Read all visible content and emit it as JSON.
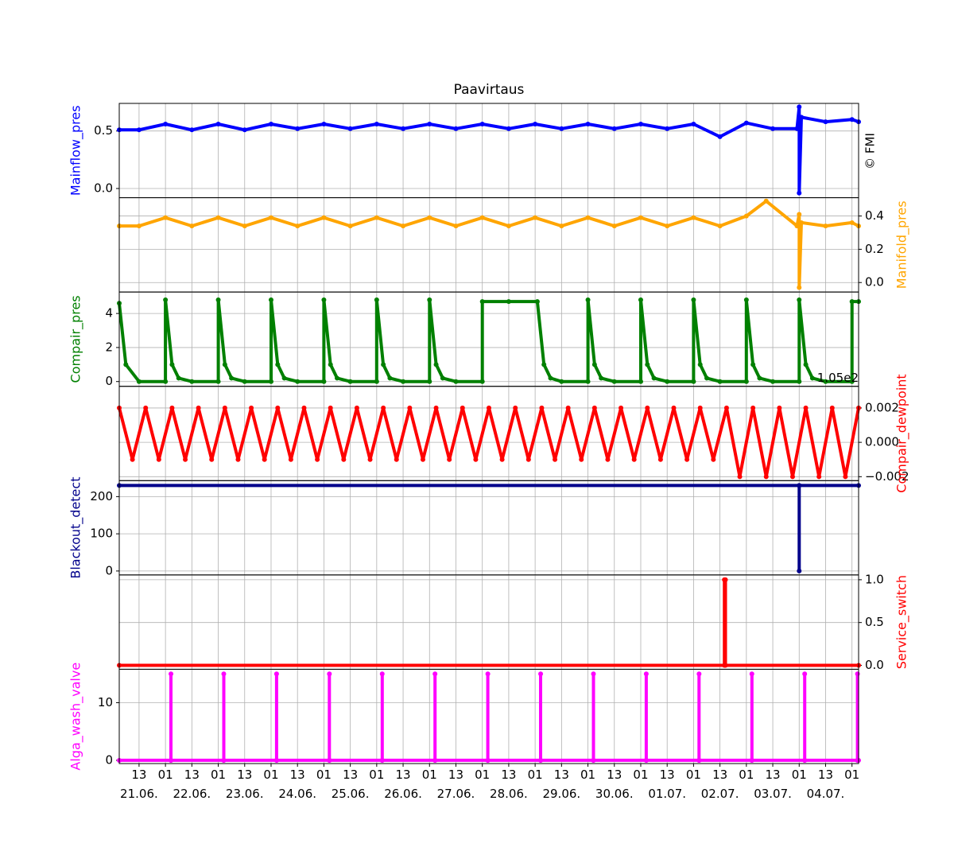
{
  "chart_data": [
    {
      "type": "line",
      "title": "Paavirtaus",
      "watermark": "© FMI",
      "ylabel": "Mainflow_pres",
      "yaxis_side": "left",
      "color": "#0000ff",
      "grid": true,
      "ylim": [
        -0.08,
        0.74
      ],
      "yticks": [
        {
          "value": 0,
          "label": "0.0"
        },
        0.5
      ],
      "x": [
        "21.06. 04:00",
        "21.06. 13:00",
        "22.06. 01:00",
        "22.06. 13:00",
        "23.06. 01:00",
        "23.06. 13:00",
        "24.06. 01:00",
        "24.06. 13:00",
        "25.06. 01:00",
        "25.06. 13:00",
        "26.06. 01:00",
        "26.06. 13:00",
        "27.06. 01:00",
        "27.06. 13:00",
        "28.06. 01:00",
        "28.06. 13:00",
        "29.06. 01:00",
        "29.06. 13:00",
        "30.06. 01:00",
        "30.06. 13:00",
        "01.07. 01:00",
        "01.07. 13:00",
        "02.07. 01:00",
        "02.07. 13:00",
        "03.07. 01:00",
        "03.07. 13:00",
        "04.07. 00:00",
        "04.07. 01:00",
        "04.07. 01:00",
        "04.07. 02:00",
        "04.07. 13:00",
        "05.07. 01:00",
        "05.07. 04:00"
      ],
      "values": [
        0.51,
        0.51,
        0.56,
        0.51,
        0.56,
        0.51,
        0.56,
        0.52,
        0.56,
        0.52,
        0.56,
        0.52,
        0.56,
        0.52,
        0.56,
        0.52,
        0.56,
        0.52,
        0.56,
        0.52,
        0.56,
        0.52,
        0.56,
        0.45,
        0.57,
        0.52,
        0.52,
        0.71,
        -0.04,
        0.62,
        0.58,
        0.6,
        0.58
      ]
    },
    {
      "type": "line",
      "ylabel": "Manifold_pres",
      "yaxis_side": "right",
      "color": "#ffa500",
      "grid": true,
      "ylim": [
        -0.057,
        0.51
      ],
      "yticks": [
        {
          "value": 0,
          "label": "0.0"
        },
        0.2,
        0.4
      ],
      "x": [
        "21.06. 04:00",
        "21.06. 13:00",
        "22.06. 01:00",
        "22.06. 13:00",
        "23.06. 01:00",
        "23.06. 13:00",
        "24.06. 01:00",
        "24.06. 13:00",
        "25.06. 01:00",
        "25.06. 13:00",
        "26.06. 01:00",
        "26.06. 13:00",
        "27.06. 01:00",
        "27.06. 13:00",
        "28.06. 01:00",
        "28.06. 13:00",
        "29.06. 01:00",
        "29.06. 13:00",
        "30.06. 01:00",
        "30.06. 13:00",
        "01.07. 01:00",
        "01.07. 13:00",
        "02.07. 01:00",
        "02.07. 13:00",
        "03.07. 01:00",
        "03.07. 10:00",
        "04.07. 00:00",
        "04.07. 01:00",
        "04.07. 01:00",
        "04.07. 02:00",
        "04.07. 13:00",
        "05.07. 01:00",
        "05.07. 04:00"
      ],
      "values": [
        0.34,
        0.34,
        0.39,
        0.34,
        0.39,
        0.34,
        0.39,
        0.34,
        0.39,
        0.34,
        0.39,
        0.34,
        0.39,
        0.34,
        0.39,
        0.34,
        0.39,
        0.34,
        0.39,
        0.34,
        0.39,
        0.34,
        0.39,
        0.34,
        0.4,
        0.49,
        0.34,
        0.41,
        -0.03,
        0.36,
        0.34,
        0.36,
        0.34
      ]
    },
    {
      "type": "line",
      "ylabel": "Compair_pres",
      "yaxis_side": "left",
      "color": "#008000",
      "grid": true,
      "ylim": [
        -0.28,
        5.26
      ],
      "yticks": [
        0,
        2,
        4
      ],
      "x": [
        "21.06. 04:00",
        "21.06. 07:00",
        "21.06. 13:00",
        "22.06. 01:00",
        "22.06. 01:00",
        "22.06. 04:00",
        "22.06. 07:00",
        "22.06. 13:00",
        "23.06. 01:00",
        "23.06. 01:00",
        "23.06. 04:00",
        "23.06. 07:00",
        "23.06. 13:00",
        "24.06. 01:00",
        "24.06. 01:00",
        "24.06. 04:00",
        "24.06. 07:00",
        "24.06. 13:00",
        "25.06. 01:00",
        "25.06. 01:00",
        "25.06. 04:00",
        "25.06. 07:00",
        "25.06. 13:00",
        "26.06. 01:00",
        "26.06. 01:00",
        "26.06. 04:00",
        "26.06. 07:00",
        "26.06. 13:00",
        "27.06. 01:00",
        "27.06. 01:00",
        "27.06. 04:00",
        "27.06. 07:00",
        "27.06. 13:00",
        "28.06. 01:00",
        "28.06. 01:00",
        "28.06. 13:00",
        "29.06. 02:00",
        "29.06. 05:00",
        "29.06. 08:00",
        "29.06. 13:00",
        "30.06. 01:00",
        "30.06. 01:00",
        "30.06. 04:00",
        "30.06. 07:00",
        "30.06. 13:00",
        "01.07. 01:00",
        "01.07. 01:00",
        "01.07. 04:00",
        "01.07. 07:00",
        "01.07. 13:00",
        "02.07. 01:00",
        "02.07. 01:00",
        "02.07. 04:00",
        "02.07. 07:00",
        "02.07. 13:00",
        "03.07. 01:00",
        "03.07. 01:00",
        "03.07. 04:00",
        "03.07. 07:00",
        "03.07. 13:00",
        "04.07. 01:00",
        "04.07. 01:00",
        "04.07. 04:00",
        "04.07. 07:00",
        "04.07. 13:00",
        "05.07. 01:00",
        "05.07. 01:00",
        "05.07. 04:00"
      ],
      "values": [
        4.6,
        1.0,
        0,
        0,
        4.8,
        1.0,
        0.2,
        0,
        0,
        4.8,
        1.0,
        0.2,
        0,
        0,
        4.8,
        1.0,
        0.2,
        0,
        0,
        4.8,
        1.0,
        0.2,
        0,
        0,
        4.8,
        1.0,
        0.2,
        0,
        0,
        4.8,
        1.0,
        0.2,
        0,
        0,
        4.7,
        4.7,
        4.7,
        1.0,
        0.2,
        0,
        0,
        4.8,
        1.0,
        0.2,
        0,
        0,
        4.8,
        1.0,
        0.2,
        0,
        0,
        4.8,
        1.0,
        0.2,
        0,
        0,
        4.8,
        1.0,
        0.2,
        0,
        0,
        4.8,
        1.0,
        0.2,
        0,
        0,
        4.7,
        4.7
      ]
    },
    {
      "type": "line",
      "ylabel": "Compair_dewpoint",
      "yaxis_side": "right",
      "color": "#ff0000",
      "grid": true,
      "offset_label": "1.05e2",
      "ylim": [
        -0.00223,
        0.00326
      ],
      "yticks": [
        {
          "value": -0.002,
          "label": "−0.002"
        },
        {
          "value": 0,
          "label": "0.000"
        },
        0.002
      ],
      "x": [
        "21.06. 04:00",
        "21.06. 10:00",
        "21.06. 16:00",
        "21.06. 22:00",
        "22.06. 04:00",
        "22.06. 10:00",
        "22.06. 16:00",
        "22.06. 22:00",
        "23.06. 04:00",
        "23.06. 10:00",
        "23.06. 16:00",
        "23.06. 22:00",
        "24.06. 04:00",
        "24.06. 10:00",
        "24.06. 16:00",
        "24.06. 22:00",
        "25.06. 04:00",
        "25.06. 10:00",
        "25.06. 16:00",
        "25.06. 22:00",
        "26.06. 04:00",
        "26.06. 10:00",
        "26.06. 16:00",
        "26.06. 22:00",
        "27.06. 04:00",
        "27.06. 10:00",
        "27.06. 16:00",
        "27.06. 22:00",
        "28.06. 04:00",
        "28.06. 10:00",
        "28.06. 16:00",
        "28.06. 22:00",
        "29.06. 04:00",
        "29.06. 10:00",
        "29.06. 16:00",
        "29.06. 22:00",
        "30.06. 04:00",
        "30.06. 10:00",
        "30.06. 16:00",
        "30.06. 22:00",
        "01.07. 04:00",
        "01.07. 10:00",
        "01.07. 16:00",
        "01.07. 22:00",
        "02.07. 04:00",
        "02.07. 10:00",
        "02.07. 16:00",
        "02.07. 22:00",
        "03.07. 04:00",
        "03.07. 10:00",
        "03.07. 16:00",
        "03.07. 22:00",
        "04.07. 04:00",
        "04.07. 10:00",
        "04.07. 16:00",
        "04.07. 22:00",
        "05.07. 04:00"
      ],
      "values": [
        0.002,
        -0.001,
        0.002,
        -0.001,
        0.002,
        -0.001,
        0.002,
        -0.001,
        0.002,
        -0.001,
        0.002,
        -0.001,
        0.002,
        -0.001,
        0.002,
        -0.001,
        0.002,
        -0.001,
        0.002,
        -0.001,
        0.002,
        -0.001,
        0.002,
        -0.001,
        0.002,
        -0.001,
        0.002,
        -0.001,
        0.002,
        -0.001,
        0.002,
        -0.001,
        0.002,
        -0.001,
        0.002,
        -0.001,
        0.002,
        -0.001,
        0.002,
        -0.001,
        0.002,
        -0.001,
        0.002,
        -0.001,
        0.002,
        -0.001,
        0.002,
        -0.002,
        0.002,
        -0.002,
        0.002,
        -0.002,
        0.002,
        -0.002,
        0.002,
        -0.002,
        0.002
      ]
    },
    {
      "type": "line",
      "ylabel": "Blackout_detect",
      "yaxis_side": "left",
      "color": "#00008b",
      "grid": true,
      "ylim": [
        -10.6,
        243
      ],
      "yticks": [
        0,
        100,
        200
      ],
      "x": [
        "21.06. 04:00",
        "04.07. 01:00",
        "04.07. 01:00",
        "04.07. 01:00",
        "05.07. 04:00"
      ],
      "values": [
        230,
        230,
        0,
        230,
        230
      ]
    },
    {
      "type": "line",
      "ylabel": "Service_switch",
      "yaxis_side": "right",
      "color": "#ff0000",
      "grid": true,
      "ylim": [
        -0.046,
        1.056
      ],
      "yticks": [
        {
          "value": 0,
          "label": "0.0"
        },
        0.5,
        {
          "value": 1,
          "label": "1.0"
        }
      ],
      "x": [
        "21.06. 04:00",
        "02.07. 15:00",
        "02.07. 15:00",
        "02.07. 15:30",
        "02.07. 15:30",
        "05.07. 04:00"
      ],
      "values": [
        0,
        0,
        1,
        1,
        0,
        0
      ]
    },
    {
      "type": "line",
      "ylabel": "Alga_wash_valve",
      "yaxis_side": "left",
      "color": "#ff00ff",
      "grid": true,
      "ylim": [
        -0.56,
        15.8
      ],
      "yticks": [
        0,
        10
      ],
      "x": [
        "21.06. 04:00",
        "22.06. 03:30",
        "22.06. 03:30",
        "22.06. 03:30",
        "23.06. 03:30",
        "23.06. 03:30",
        "23.06. 03:30",
        "24.06. 03:30",
        "24.06. 03:30",
        "24.06. 03:30",
        "25.06. 03:30",
        "25.06. 03:30",
        "25.06. 03:30",
        "26.06. 03:30",
        "26.06. 03:30",
        "26.06. 03:30",
        "27.06. 03:30",
        "27.06. 03:30",
        "27.06. 03:30",
        "28.06. 03:30",
        "28.06. 03:30",
        "28.06. 03:30",
        "29.06. 03:30",
        "29.06. 03:30",
        "29.06. 03:30",
        "30.06. 03:30",
        "30.06. 03:30",
        "30.06. 03:30",
        "01.07. 03:30",
        "01.07. 03:30",
        "01.07. 03:30",
        "02.07. 03:30",
        "02.07. 03:30",
        "02.07. 03:30",
        "03.07. 03:30",
        "03.07. 03:30",
        "03.07. 03:30",
        "04.07. 03:30",
        "04.07. 03:30",
        "04.07. 03:30",
        "05.07. 03:30",
        "05.07. 03:30",
        "05.07. 03:30",
        "05.07. 04:00"
      ],
      "values": [
        0,
        0,
        15,
        0,
        0,
        15,
        0,
        0,
        15,
        0,
        0,
        15,
        0,
        0,
        15,
        0,
        0,
        15,
        0,
        0,
        15,
        0,
        0,
        15,
        0,
        0,
        15,
        0,
        0,
        15,
        0,
        0,
        15,
        0,
        0,
        15,
        0,
        0,
        15,
        0,
        0,
        15,
        0,
        0
      ],
      "xlim": [
        "21.06. 04:00",
        "05.07. 04:00"
      ],
      "xticks": [
        {
          "value": "21.06. 13:00",
          "label": "13\n21.06."
        },
        {
          "value": "22.06. 01:00",
          "label": "01"
        },
        {
          "value": "22.06. 13:00",
          "label": "13\n22.06."
        },
        {
          "value": "23.06. 01:00",
          "label": "01"
        },
        {
          "value": "23.06. 13:00",
          "label": "13\n23.06."
        },
        {
          "value": "24.06. 01:00",
          "label": "01"
        },
        {
          "value": "24.06. 13:00",
          "label": "13\n24.06."
        },
        {
          "value": "25.06. 01:00",
          "label": "01"
        },
        {
          "value": "25.06. 13:00",
          "label": "13\n25.06."
        },
        {
          "value": "26.06. 01:00",
          "label": "01"
        },
        {
          "value": "26.06. 13:00",
          "label": "13\n26.06."
        },
        {
          "value": "27.06. 01:00",
          "label": "01"
        },
        {
          "value": "27.06. 13:00",
          "label": "13\n27.06."
        },
        {
          "value": "28.06. 01:00",
          "label": "01"
        },
        {
          "value": "28.06. 13:00",
          "label": "13\n28.06."
        },
        {
          "value": "29.06. 01:00",
          "label": "01"
        },
        {
          "value": "29.06. 13:00",
          "label": "13\n29.06."
        },
        {
          "value": "30.06. 01:00",
          "label": "01"
        },
        {
          "value": "30.06. 13:00",
          "label": "13\n30.06."
        },
        {
          "value": "01.07. 01:00",
          "label": "01"
        },
        {
          "value": "01.07. 13:00",
          "label": "13\n01.07."
        },
        {
          "value": "02.07. 01:00",
          "label": "01"
        },
        {
          "value": "02.07. 13:00",
          "label": "13\n02.07."
        },
        {
          "value": "03.07. 01:00",
          "label": "01"
        },
        {
          "value": "03.07. 13:00",
          "label": "13\n03.07."
        },
        {
          "value": "04.07. 01:00",
          "label": "01"
        },
        {
          "value": "04.07. 13:00",
          "label": "13\n04.07."
        },
        {
          "value": "05.07. 01:00",
          "label": "01"
        }
      ]
    }
  ]
}
